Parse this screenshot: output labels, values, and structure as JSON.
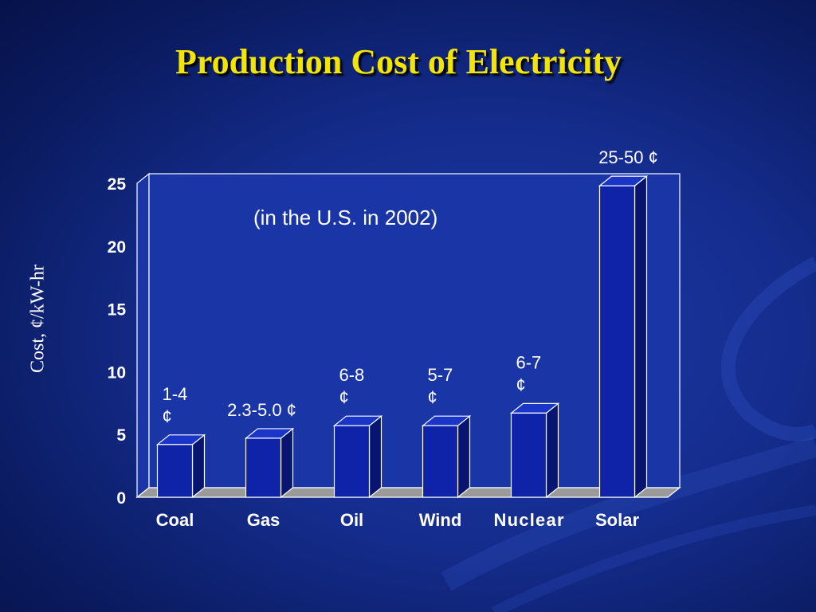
{
  "title": "Production Cost of Electricity",
  "colors": {
    "title": "#f2e600",
    "bar_front": "#0e23a8",
    "bar_top": "#1a36c8",
    "bar_side": "#081570",
    "plot_wall": "#1a35a6",
    "floor": "#9a9a9a",
    "text": "#ffffff"
  },
  "chart_data": {
    "type": "bar",
    "title": "Production Cost of Electricity",
    "subtitle": "(in the U.S. in 2002)",
    "xlabel": "",
    "ylabel": "Cost, ¢/kW-hr",
    "categories": [
      "Coal",
      "Gas",
      "Oil",
      "Wind",
      "Nuclear",
      "Solar"
    ],
    "values": [
      4.2,
      4.7,
      5.7,
      5.7,
      6.7,
      24.8
    ],
    "data_labels": [
      [
        "1-4",
        "¢"
      ],
      [
        "2.3-5.0 ¢"
      ],
      [
        "6-8",
        "¢"
      ],
      [
        "5-7",
        "¢"
      ],
      [
        "6-7",
        "¢"
      ],
      [
        "25-50 ¢"
      ]
    ],
    "ylim": [
      0,
      25
    ],
    "yticks": [
      0,
      5,
      10,
      15,
      20,
      25
    ],
    "grid": false,
    "legend": "none",
    "style": "3d"
  }
}
